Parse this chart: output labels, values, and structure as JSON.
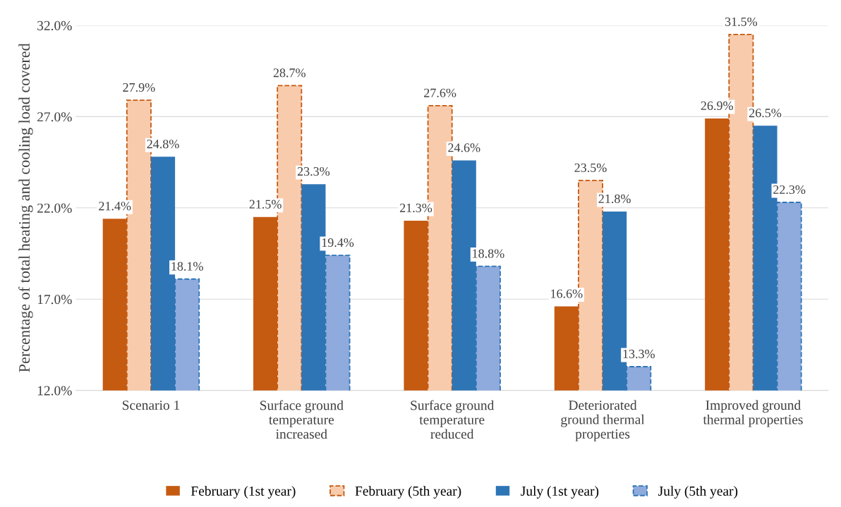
{
  "chart_data": {
    "type": "bar",
    "ylabel": "Percentage of total heating and cooling load covered",
    "categories": [
      "Scenario 1",
      "Surface ground\ntemperature\nincreased",
      "Surface ground\ntemperature\nreduced",
      "Deteriorated\nground thermal\nproperties",
      "Improved ground\nthermal properties"
    ],
    "series": [
      {
        "name": "February (1st year)",
        "color": "#c55a11",
        "line_style": "solid",
        "values": [
          21.4,
          21.5,
          21.3,
          16.6,
          26.9
        ],
        "value_labels": [
          "21.4%",
          "21.5%",
          "21.3%",
          "16.6%",
          "26.9%"
        ]
      },
      {
        "name": "February (5th year)",
        "color": "#f8cbad",
        "line_style": "dashed",
        "values": [
          27.9,
          28.7,
          27.6,
          23.5,
          31.5
        ],
        "value_labels": [
          "27.9%",
          "28.7%",
          "27.6%",
          "23.5%",
          "31.5%"
        ]
      },
      {
        "name": "July (1st year)",
        "color": "#2e75b6",
        "line_style": "solid",
        "values": [
          24.8,
          23.3,
          24.6,
          21.8,
          26.5
        ],
        "value_labels": [
          "24.8%",
          "23.3%",
          "24.6%",
          "21.8%",
          "26.5%"
        ]
      },
      {
        "name": "July (5th year)",
        "color": "#8faadc",
        "line_style": "dashed",
        "values": [
          18.1,
          19.4,
          18.8,
          13.3,
          22.3
        ],
        "value_labels": [
          "18.1%",
          "19.4%",
          "18.8%",
          "13.3%",
          "22.3%"
        ]
      }
    ],
    "ylim": [
      12,
      32
    ],
    "yticks": [
      {
        "value": 12,
        "label": "12.0%"
      },
      {
        "value": 17,
        "label": "17.0%"
      },
      {
        "value": 22,
        "label": "22.0%"
      },
      {
        "value": 27,
        "label": "27.0%"
      },
      {
        "value": 32,
        "label": "32.0%"
      }
    ],
    "grid": "y",
    "legend": "bottom"
  }
}
